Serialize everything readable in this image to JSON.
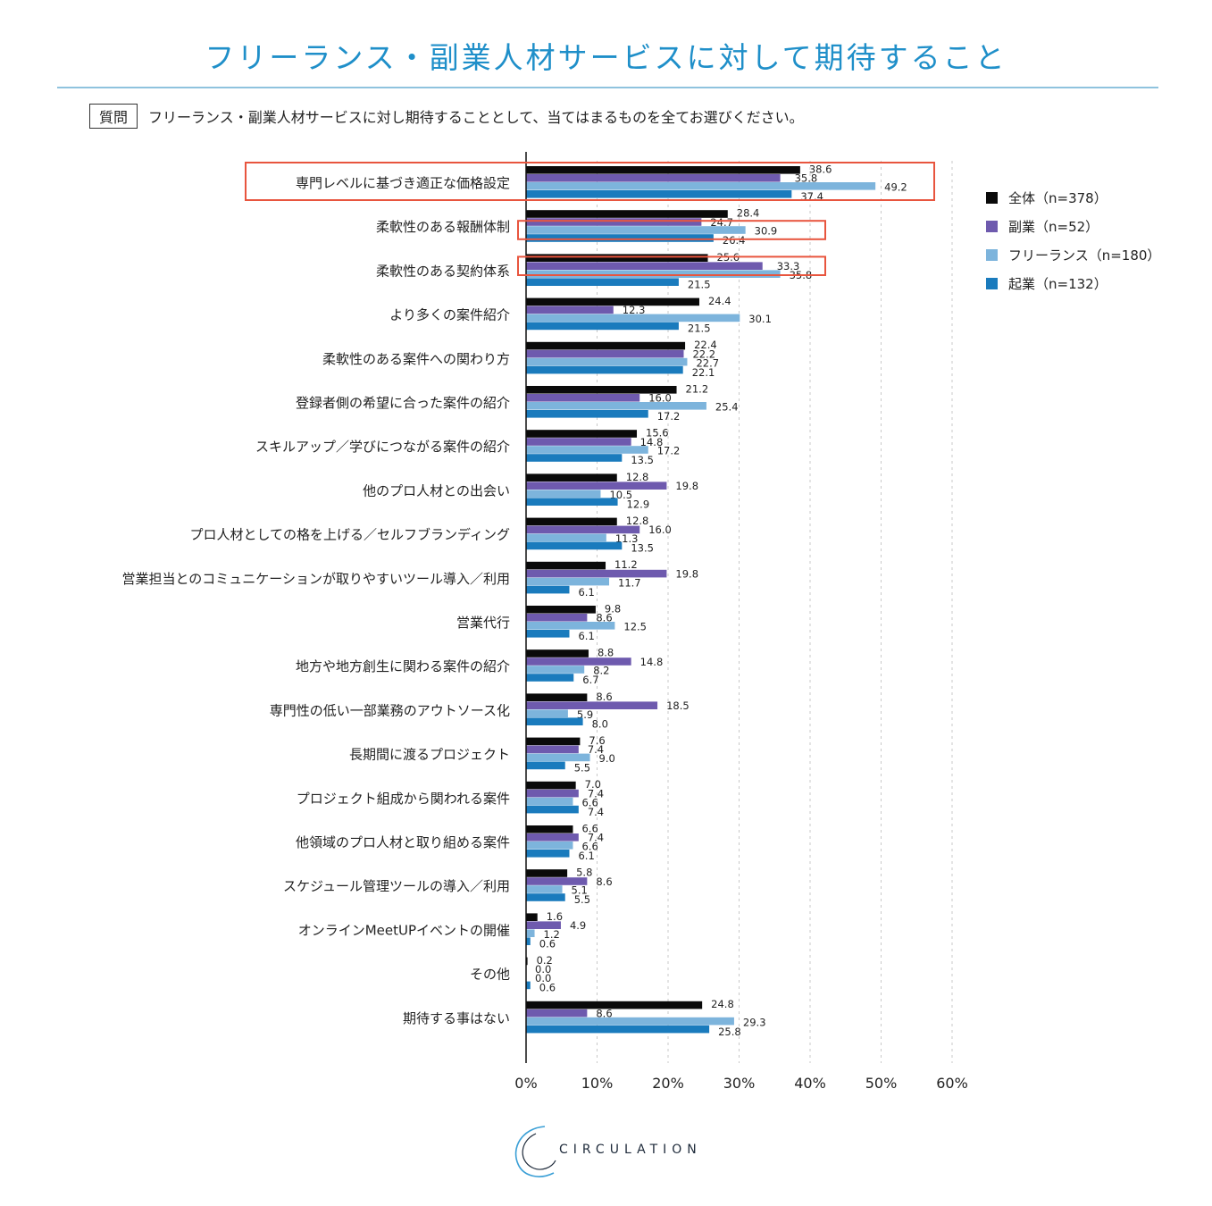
{
  "title": "フリーランス・副業人材サービスに対して期待すること",
  "question": {
    "tag": "質問",
    "text": "フリーランス・副業人材サービスに対し期待することとして、当てはまるものを全てお選びください。"
  },
  "logo_text": "CIRCULATION",
  "colors": {
    "title": "#1f8fc9",
    "highlight": "#e8553e",
    "series": [
      "#0a0a0a",
      "#6e5aae",
      "#7db4dc",
      "#1a7bbd"
    ]
  },
  "chart_data": {
    "type": "bar",
    "orientation": "horizontal",
    "title": "フリーランス・副業人材サービスに対して期待すること",
    "xlabel": "",
    "ylabel": "",
    "xlim": [
      0,
      60
    ],
    "xticks": [
      "0%",
      "10%",
      "20%",
      "30%",
      "40%",
      "50%",
      "60%"
    ],
    "grid": true,
    "legend_position": "right",
    "categories": [
      "専門レベルに基づき適正な価格設定",
      "柔軟性のある報酬体制",
      "柔軟性のある契約体系",
      "より多くの案件紹介",
      "柔軟性のある案件への関わり方",
      "登録者側の希望に合った案件の紹介",
      "スキルアップ／学びにつながる案件の紹介",
      "他のプロ人材との出会い",
      "プロ人材としての格を上げる／セルフブランディング",
      "営業担当とのコミュニケーションが取りやすいツール導入／利用",
      "営業代行",
      "地方や地方創生に関わる案件の紹介",
      "専門性の低い一部業務のアウトソース化",
      "長期間に渡るプロジェクト",
      "プロジェクト組成から関われる案件",
      "他領域のプロ人材と取り組める案件",
      "スケジュール管理ツールの導入／利用",
      "オンラインMeetUPイベントの開催",
      "その他",
      "期待する事はない"
    ],
    "series": [
      {
        "name": "全体（n=378）",
        "values": [
          38.6,
          28.4,
          25.6,
          24.4,
          22.4,
          21.2,
          15.6,
          12.8,
          12.8,
          11.2,
          9.8,
          8.8,
          8.6,
          7.6,
          7.0,
          6.6,
          5.8,
          1.6,
          0.2,
          24.8
        ],
        "labels": [
          "38.6",
          "28.4",
          "25.6",
          "24.4",
          "22.4",
          "21.2",
          "15.6",
          "12.8",
          "12.8",
          "11.2",
          "9.8",
          "8.8",
          "8.6",
          "7.6",
          "7.0",
          "6.6",
          "5.8",
          "1.6",
          "0.2",
          "24.8"
        ]
      },
      {
        "name": "副業（n=52）",
        "values": [
          35.8,
          24.7,
          33.3,
          12.3,
          22.2,
          16.0,
          14.8,
          19.8,
          16.0,
          19.8,
          8.6,
          14.8,
          18.5,
          7.4,
          7.4,
          7.4,
          8.6,
          4.9,
          0.0,
          8.6
        ],
        "labels": [
          "35.8",
          "24.7",
          "33.3",
          "12.3",
          "22.2",
          "16.0",
          "14.8",
          "19.8",
          "16.0",
          "19.8",
          "8.6",
          "14.8",
          "18.5",
          "7.4",
          "7.4",
          "7.4",
          "8.6",
          "4.9",
          "0.0",
          "8.6"
        ]
      },
      {
        "name": "フリーランス（n=180）",
        "values": [
          49.2,
          30.9,
          35.8,
          30.1,
          22.7,
          25.4,
          17.2,
          10.5,
          11.3,
          11.7,
          12.5,
          8.2,
          5.9,
          9.0,
          6.6,
          6.6,
          5.1,
          1.2,
          0.0,
          29.3
        ],
        "labels": [
          "49.2",
          "30.9",
          "35.8",
          "30.1",
          "22.7",
          "25.4",
          "17.2",
          "10.5",
          "11.3",
          "11.7",
          "12.5",
          "8.2",
          "5.9",
          "9.0",
          "6.6",
          "6.6",
          "5.1",
          "1.2",
          "0.0",
          "29.3"
        ]
      },
      {
        "name": "起業（n=132）",
        "values": [
          37.4,
          26.4,
          21.5,
          21.5,
          22.1,
          17.2,
          13.5,
          12.9,
          13.5,
          6.1,
          6.1,
          6.7,
          8.0,
          5.5,
          7.4,
          6.1,
          5.5,
          0.6,
          0.6,
          25.8
        ],
        "labels": [
          "37.4",
          "26.4",
          "21.5",
          "21.5",
          "22.1",
          "17.2",
          "13.5",
          "12.9",
          "13.5",
          "6.1",
          "6.1",
          "6.7",
          "8.0",
          "5.5",
          "7.4",
          "6.1",
          "5.5",
          "0.6",
          "0.6",
          "25.8"
        ]
      }
    ],
    "highlights": [
      {
        "category_index": 0,
        "series": "all"
      },
      {
        "category_index": 1,
        "series": "フリーランス（n=180）"
      },
      {
        "category_index": 2,
        "series": "副業（n=52）"
      }
    ]
  }
}
